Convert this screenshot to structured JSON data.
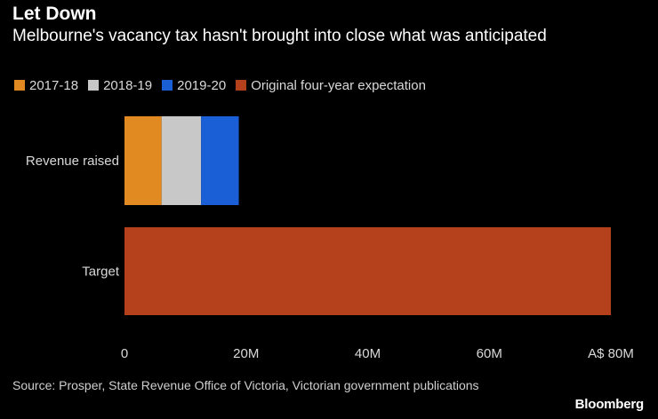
{
  "header": {
    "title": "Let Down",
    "subtitle": "Melbourne's vacancy tax hasn't brought into close what was anticipated"
  },
  "chart_data": {
    "type": "bar",
    "orientation": "horizontal",
    "stacked": true,
    "title": "Let Down",
    "subtitle": "Melbourne's vacancy tax hasn't brought into close what was anticipated",
    "categories": [
      "Revenue raised",
      "Target"
    ],
    "series": [
      {
        "name": "2017-18",
        "color": "#e28a22",
        "values": [
          6.1,
          0
        ]
      },
      {
        "name": "2018-19",
        "color": "#c8c8c8",
        "values": [
          6.5,
          0
        ]
      },
      {
        "name": "2019-20",
        "color": "#1a5fd6",
        "values": [
          6.2,
          0
        ]
      },
      {
        "name": "Original four-year expectation",
        "color": "#b5401c",
        "values": [
          0,
          80
        ]
      }
    ],
    "xlim": [
      0,
      80
    ],
    "xticks": [
      {
        "value": 0,
        "label": "0"
      },
      {
        "value": 20,
        "label": "20M"
      },
      {
        "value": 40,
        "label": "40M"
      },
      {
        "value": 60,
        "label": "60M"
      },
      {
        "value": 80,
        "label": "A$ 80M"
      }
    ],
    "xlabel": "",
    "ylabel": "",
    "grid": false,
    "legend": "top-left"
  },
  "footer": {
    "source": "Source: Prosper, State Revenue Office of Victoria, Victorian government publications",
    "brand": "Bloomberg"
  }
}
